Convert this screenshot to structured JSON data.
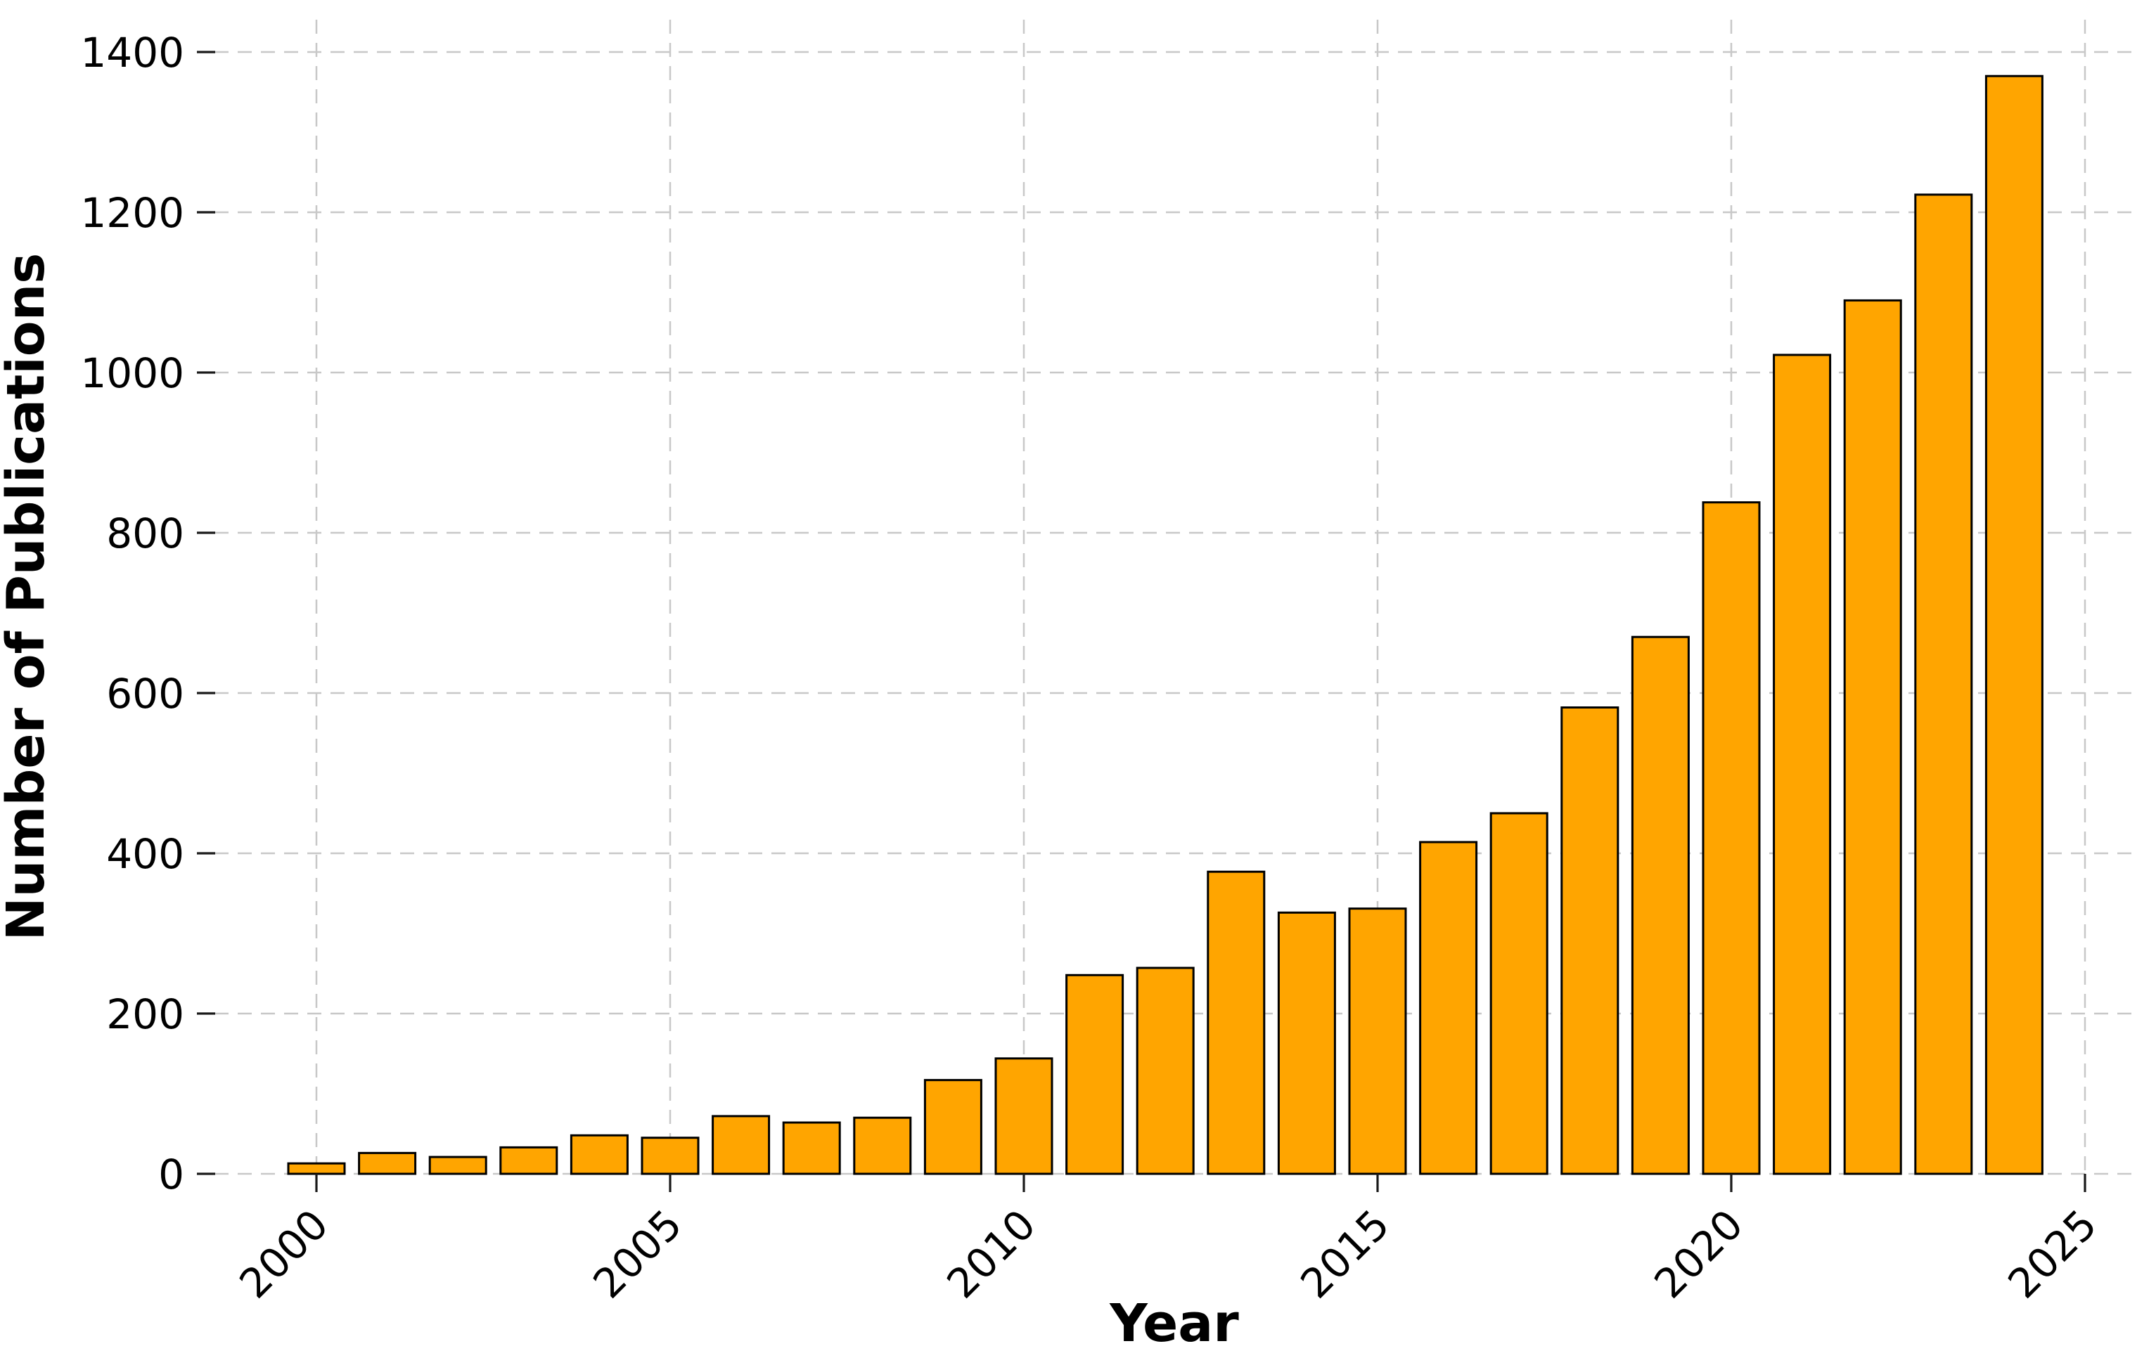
{
  "figure": {
    "background": "#ffffff"
  },
  "chart_data": {
    "type": "bar",
    "title": "",
    "xlabel": "Year",
    "ylabel": "Number of Publications",
    "categories": [
      2000,
      2001,
      2002,
      2003,
      2004,
      2005,
      2006,
      2007,
      2008,
      2009,
      2010,
      2011,
      2012,
      2013,
      2014,
      2015,
      2016,
      2017,
      2018,
      2019,
      2020,
      2021,
      2022,
      2023,
      2024
    ],
    "values": [
      13,
      26,
      21,
      33,
      48,
      45,
      72,
      64,
      70,
      117,
      144,
      248,
      257,
      377,
      326,
      331,
      414,
      450,
      582,
      670,
      838,
      1022,
      1090,
      1222,
      1370
    ],
    "x_ticks": [
      2000,
      2005,
      2010,
      2015,
      2020,
      2025
    ],
    "x_tick_labels": [
      "2000",
      "2005",
      "2010",
      "2015",
      "2020",
      "2025"
    ],
    "y_ticks": [
      0,
      200,
      400,
      600,
      800,
      1000,
      1200,
      1400
    ],
    "y_tick_labels": [
      "0",
      "200",
      "400",
      "600",
      "800",
      "1000",
      "1200",
      "1400"
    ],
    "xlim": [
      1998.6,
      2025.7
    ],
    "ylim": [
      0,
      1440
    ],
    "x_tick_rotation": 45,
    "grid": true,
    "grid_style": "dashed",
    "legend": null,
    "colors": {
      "bar_fill": "#FFA500",
      "bar_edge": "#000000",
      "grid_line": "#c8c8c8",
      "tick_mark": "#1a1a1a",
      "text": "#000000",
      "background": "#ffffff"
    }
  }
}
